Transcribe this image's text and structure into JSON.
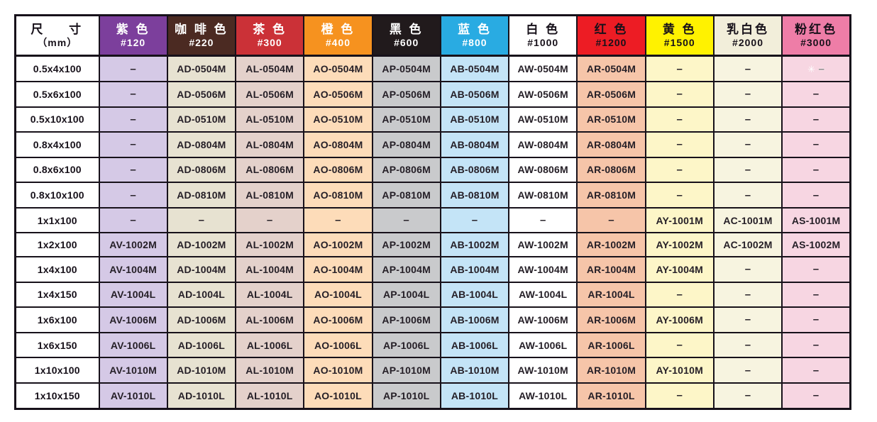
{
  "table": {
    "size_column": {
      "title": "尺 寸",
      "unit": "（mm）"
    },
    "dash": "–",
    "columns": [
      {
        "label": "紫 色",
        "grit": "#120",
        "header_bg": "#7c3f9c",
        "header_fg": "#ffffff",
        "body_bg": "#d5c9e6"
      },
      {
        "label": "咖 啡 色",
        "grit": "#220",
        "header_bg": "#4b2a22",
        "header_fg": "#ffffff",
        "body_bg": "#e7e2d1"
      },
      {
        "label": "茶 色",
        "grit": "#300",
        "header_bg": "#cb3137",
        "header_fg": "#ffffff",
        "body_bg": "#e4d1cb"
      },
      {
        "label": "橙 色",
        "grit": "#400",
        "header_bg": "#f6921f",
        "header_fg": "#ffffff",
        "body_bg": "#fddcb9"
      },
      {
        "label": "黑 色",
        "grit": "#600",
        "header_bg": "#211a1c",
        "header_fg": "#ffffff",
        "body_bg": "#c9cacc"
      },
      {
        "label": "蓝 色",
        "grit": "#800",
        "header_bg": "#29abe2",
        "header_fg": "#ffffff",
        "body_bg": "#c4e4f7"
      },
      {
        "label": "白 色",
        "grit": "#1000",
        "header_bg": "#ffffff",
        "header_fg": "#17111a",
        "body_bg": "#ffffff"
      },
      {
        "label": "红 色",
        "grit": "#1200",
        "header_bg": "#ed1c24",
        "header_fg": "#17111a",
        "body_bg": "#f6c5a9"
      },
      {
        "label": "黄 色",
        "grit": "#1500",
        "header_bg": "#fff200",
        "header_fg": "#17111a",
        "body_bg": "#fdf6c8"
      },
      {
        "label": "乳白色",
        "grit": "#2000",
        "header_bg": "#f2eeda",
        "header_fg": "#17111a",
        "body_bg": "#f7f4e0"
      },
      {
        "label": "粉红色",
        "grit": "#3000",
        "header_bg": "#ee7da7",
        "header_fg": "#17111a",
        "body_bg": "#f7d6e2"
      }
    ],
    "rows": [
      {
        "size": "0.5x4x100",
        "codes": [
          "–",
          "AD-0504M",
          "AL-0504M",
          "AO-0504M",
          "AP-0504M",
          "AB-0504M",
          "AW-0504M",
          "AR-0504M",
          "–",
          "–",
          "✳ –"
        ]
      },
      {
        "size": "0.5x6x100",
        "codes": [
          "–",
          "AD-0506M",
          "AL-0506M",
          "AO-0506M",
          "AP-0506M",
          "AB-0506M",
          "AW-0506M",
          "AR-0506M",
          "–",
          "–",
          "–"
        ]
      },
      {
        "size": "0.5x10x100",
        "codes": [
          "–",
          "AD-0510M",
          "AL-0510M",
          "AO-0510M",
          "AP-0510M",
          "AB-0510M",
          "AW-0510M",
          "AR-0510M",
          "–",
          "–",
          "–"
        ]
      },
      {
        "size": "0.8x4x100",
        "codes": [
          "–",
          "AD-0804M",
          "AL-0804M",
          "AO-0804M",
          "AP-0804M",
          "AB-0804M",
          "AW-0804M",
          "AR-0804M",
          "–",
          "–",
          "–"
        ]
      },
      {
        "size": "0.8x6x100",
        "codes": [
          "–",
          "AD-0806M",
          "AL-0806M",
          "AO-0806M",
          "AP-0806M",
          "AB-0806M",
          "AW-0806M",
          "AR-0806M",
          "–",
          "–",
          "–"
        ]
      },
      {
        "size": "0.8x10x100",
        "codes": [
          "–",
          "AD-0810M",
          "AL-0810M",
          "AO-0810M",
          "AP-0810M",
          "AB-0810M",
          "AW-0810M",
          "AR-0810M",
          "–",
          "–",
          "–"
        ]
      },
      {
        "size": "1x1x100",
        "codes": [
          "–",
          "–",
          "–",
          "–",
          "–",
          "–",
          "–",
          "–",
          "AY-1001M",
          "AC-1001M",
          "AS-1001M"
        ]
      },
      {
        "size": "1x2x100",
        "codes": [
          "AV-1002M",
          "AD-1002M",
          "AL-1002M",
          "AO-1002M",
          "AP-1002M",
          "AB-1002M",
          "AW-1002M",
          "AR-1002M",
          "AY-1002M",
          "AC-1002M",
          "AS-1002M"
        ]
      },
      {
        "size": "1x4x100",
        "codes": [
          "AV-1004M",
          "AD-1004M",
          "AL-1004M",
          "AO-1004M",
          "AP-1004M",
          "AB-1004M",
          "AW-1004M",
          "AR-1004M",
          "AY-1004M",
          "–",
          "–"
        ]
      },
      {
        "size": "1x4x150",
        "codes": [
          "AV-1004L",
          "AD-1004L",
          "AL-1004L",
          "AO-1004L",
          "AP-1004L",
          "AB-1004L",
          "AW-1004L",
          "AR-1004L",
          "–",
          "–",
          "–"
        ]
      },
      {
        "size": "1x6x100",
        "codes": [
          "AV-1006M",
          "AD-1006M",
          "AL-1006M",
          "AO-1006M",
          "AP-1006M",
          "AB-1006M",
          "AW-1006M",
          "AR-1006M",
          "AY-1006M",
          "–",
          "–"
        ]
      },
      {
        "size": "1x6x150",
        "codes": [
          "AV-1006L",
          "AD-1006L",
          "AL-1006L",
          "AO-1006L",
          "AP-1006L",
          "AB-1006L",
          "AW-1006L",
          "AR-1006L",
          "–",
          "–",
          "–"
        ]
      },
      {
        "size": "1x10x100",
        "codes": [
          "AV-1010M",
          "AD-1010M",
          "AL-1010M",
          "AO-1010M",
          "AP-1010M",
          "AB-1010M",
          "AW-1010M",
          "AR-1010M",
          "AY-1010M",
          "–",
          "–"
        ]
      },
      {
        "size": "1x10x150",
        "codes": [
          "AV-1010L",
          "AD-1010L",
          "AL-1010L",
          "AO-1010L",
          "AP-1010L",
          "AB-1010L",
          "AW-1010L",
          "AR-1010L",
          "–",
          "–",
          "–"
        ]
      }
    ]
  }
}
